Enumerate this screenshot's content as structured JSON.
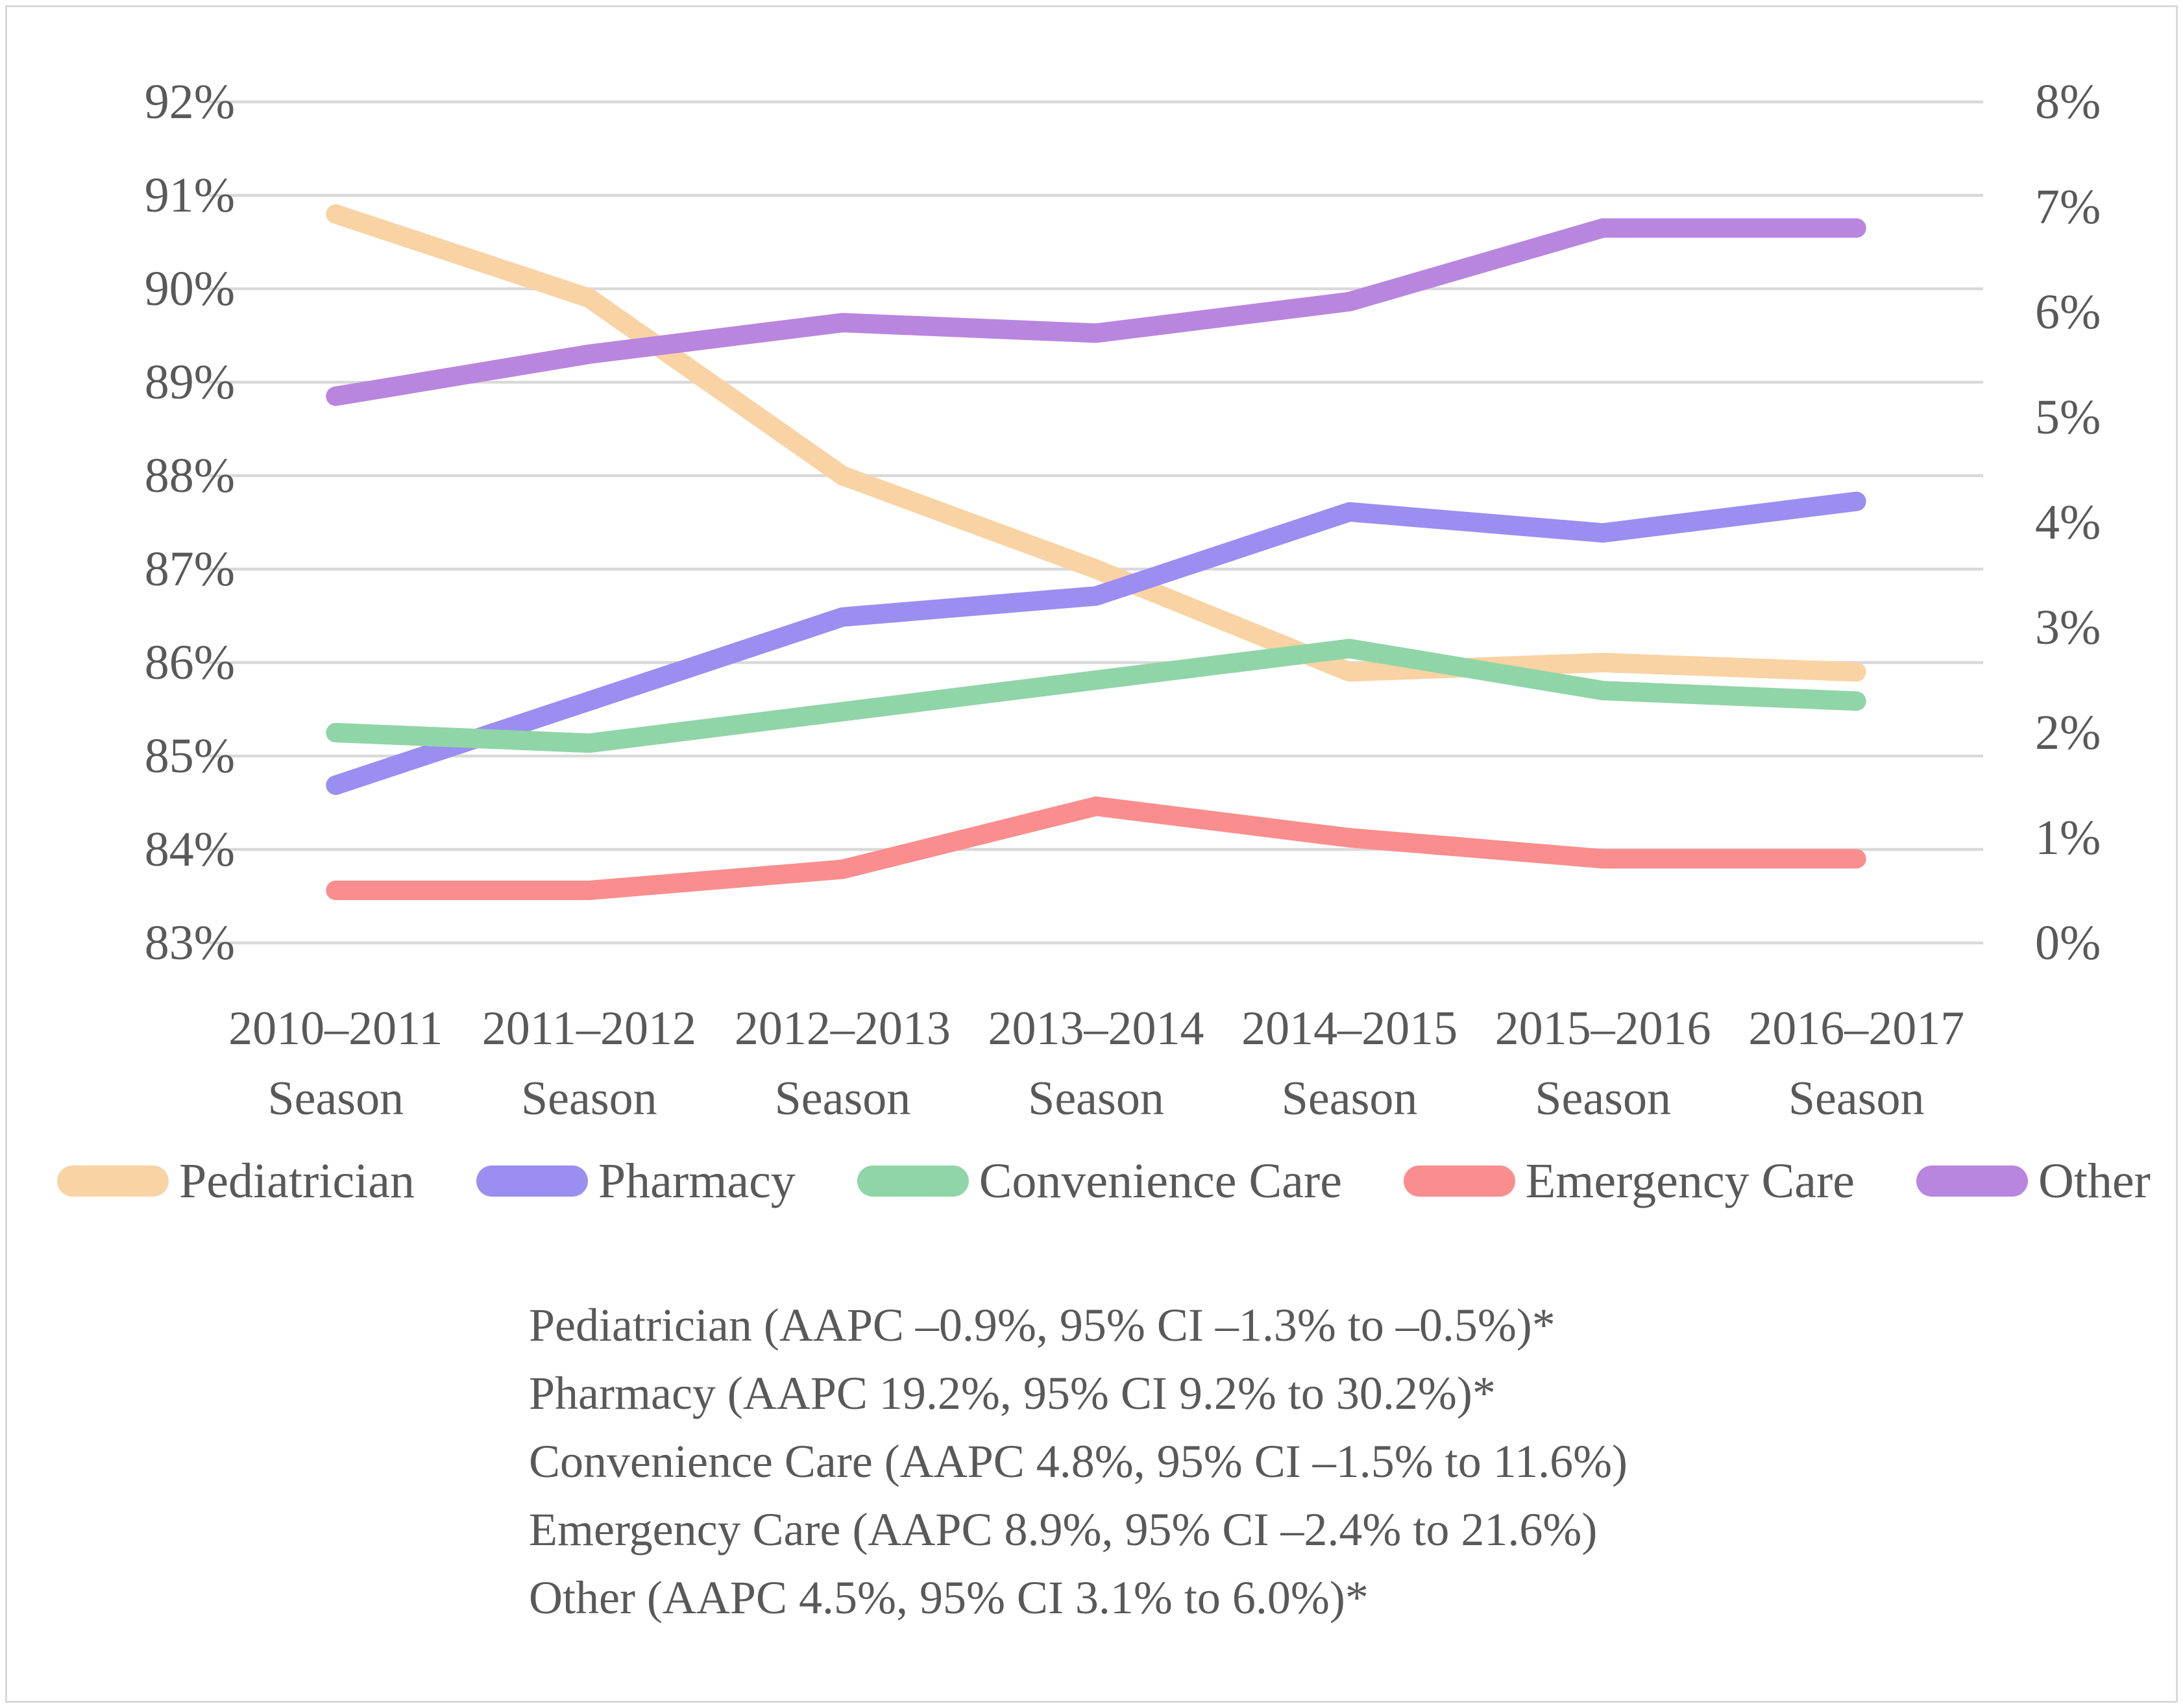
{
  "chart_data": {
    "type": "line",
    "categories": [
      {
        "years": "2010–2011",
        "sub": "Season"
      },
      {
        "years": "2011–2012",
        "sub": "Season"
      },
      {
        "years": "2012–2013",
        "sub": "Season"
      },
      {
        "years": "2013–2014",
        "sub": "Season"
      },
      {
        "years": "2014–2015",
        "sub": "Season"
      },
      {
        "years": "2015–2016",
        "sub": "Season"
      },
      {
        "years": "2016–2017",
        "sub": "Season"
      }
    ],
    "left_axis": {
      "min": 83,
      "max": 92,
      "step": 1,
      "tick_labels": [
        "92%",
        "91%",
        "90%",
        "89%",
        "88%",
        "87%",
        "86%",
        "85%",
        "84%",
        "83%"
      ]
    },
    "right_axis": {
      "min": 0,
      "max": 8,
      "step": 1,
      "tick_labels": [
        "8%",
        "7%",
        "6%",
        "5%",
        "4%",
        "3%",
        "2%",
        "1%",
        "0%"
      ]
    },
    "grid": true,
    "grid_color": "#d9d9d9",
    "text_color": "#595959",
    "legend_position": "bottom",
    "series": [
      {
        "name": "Pediatrician",
        "axis": "left",
        "color": "#f9d3a4",
        "values": [
          90.8,
          89.9,
          88.0,
          87.0,
          85.9,
          86.0,
          85.9
        ]
      },
      {
        "name": "Pharmacy",
        "axis": "right",
        "color": "#9c8df1",
        "values": [
          1.5,
          2.3,
          3.1,
          3.3,
          4.1,
          3.9,
          4.2
        ]
      },
      {
        "name": "Convenience Care",
        "axis": "right",
        "color": "#90d5a7",
        "values": [
          2.0,
          1.9,
          2.2,
          2.5,
          2.8,
          2.4,
          2.3
        ]
      },
      {
        "name": "Emergency Care",
        "axis": "right",
        "color": "#fa8e8e",
        "values": [
          0.5,
          0.5,
          0.7,
          1.3,
          1.0,
          0.8,
          0.8
        ]
      },
      {
        "name": "Other",
        "axis": "right",
        "color": "#b886de",
        "values": [
          5.2,
          5.6,
          5.9,
          5.8,
          6.1,
          6.8,
          6.8
        ]
      }
    ]
  },
  "legend": {
    "items": [
      {
        "label": "Pediatrician",
        "color": "#f9d3a4"
      },
      {
        "label": "Pharmacy",
        "color": "#9c8df1"
      },
      {
        "label": "Convenience Care",
        "color": "#90d5a7"
      },
      {
        "label": "Emergency Care",
        "color": "#fa8e8e"
      },
      {
        "label": "Other",
        "color": "#b886de"
      }
    ]
  },
  "annotations": {
    "lines": [
      "Pediatrician (AAPC –0.9%, 95% CI –1.3% to –0.5%)*",
      "Pharmacy (AAPC 19.2%, 95% CI 9.2% to 30.2%)*",
      "Convenience Care (AAPC 4.8%, 95% CI –1.5% to 11.6%)",
      "Emergency Care (AAPC 8.9%, 95% CI –2.4% to 21.6%)",
      "Other (AAPC 4.5%, 95% CI 3.1% to 6.0%)*"
    ]
  }
}
